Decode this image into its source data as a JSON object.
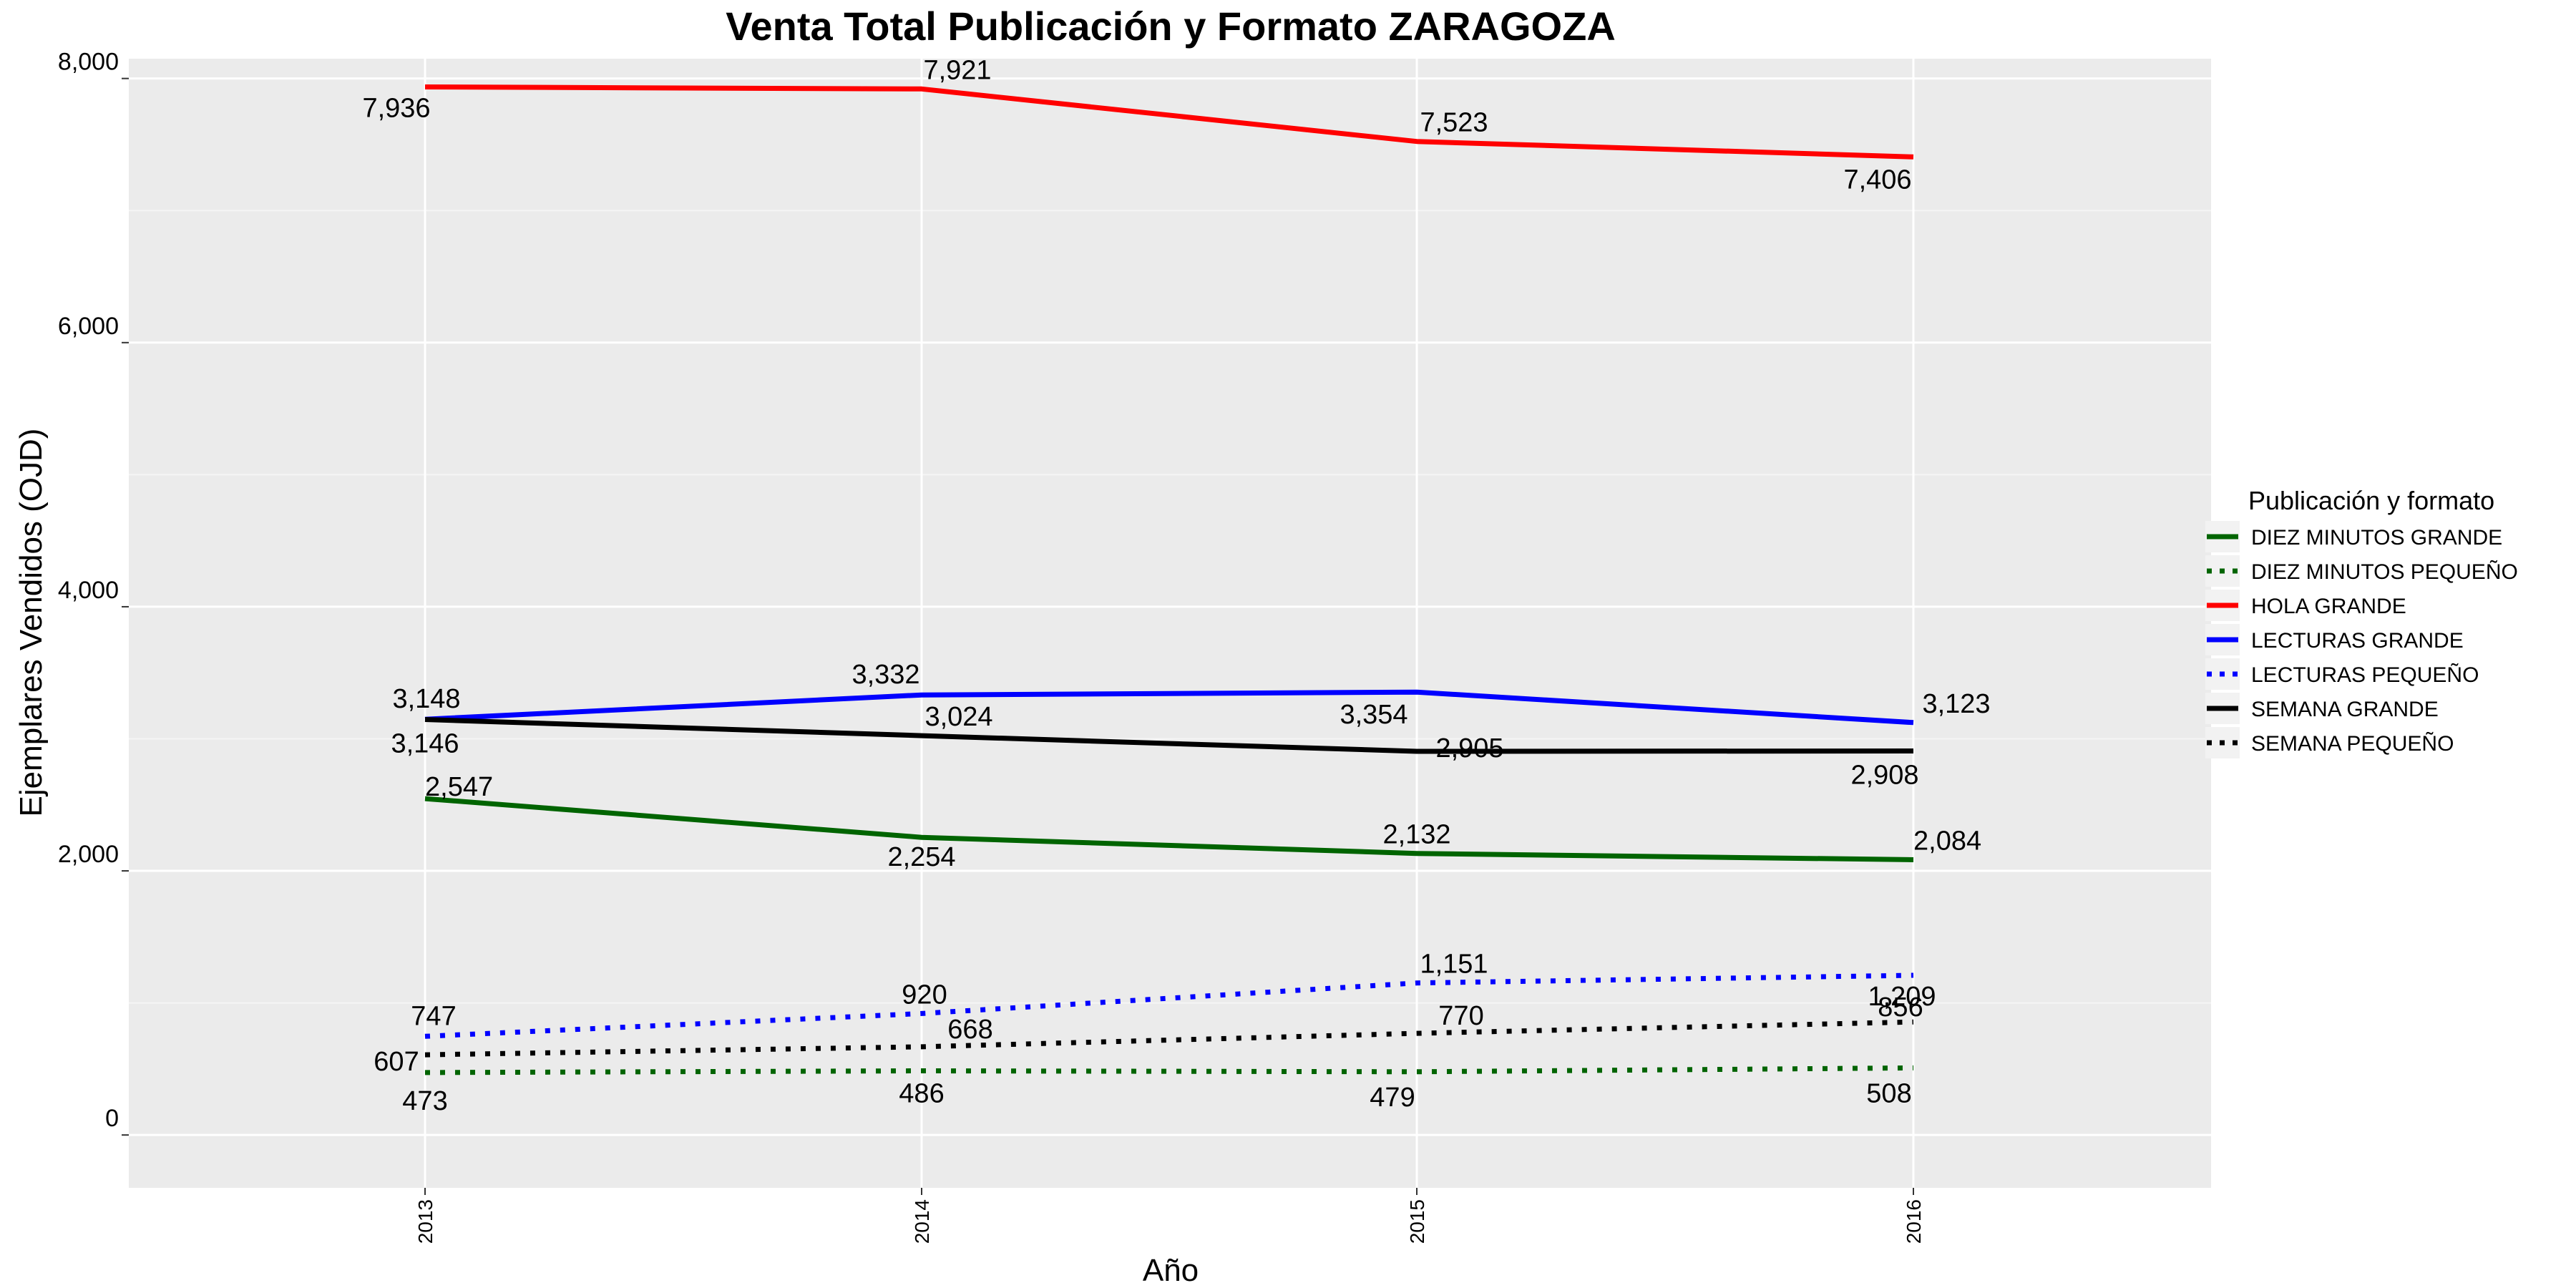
{
  "chart_data": {
    "type": "line",
    "title": "Venta Total Publicación y Formato  ZARAGOZA",
    "xlabel": "Año",
    "ylabel": "Ejemplares Vendidos (OJD)",
    "x": [
      "2013",
      "2014",
      "2015",
      "2016"
    ],
    "ylim": [
      -400,
      8150
    ],
    "yticks": [
      0,
      2000,
      4000,
      6000,
      8000
    ],
    "ytick_labels": [
      "0",
      "2,000",
      "4,000",
      "6,000",
      "8,000"
    ],
    "grid": true,
    "legend_title": "Publicación y formato",
    "legend_position": "right",
    "series": [
      {
        "name": "DIEZ MINUTOS GRANDE",
        "color": "#006400",
        "style": "solid",
        "values": [
          2547,
          2254,
          2132,
          2084
        ],
        "labels": [
          "2,547",
          "2,254",
          "2,132",
          "2,084"
        ]
      },
      {
        "name": "DIEZ MINUTOS PEQUEÑO",
        "color": "#006400",
        "style": "dotted",
        "values": [
          473,
          486,
          479,
          508
        ],
        "labels": [
          "473",
          "486",
          "479",
          "508"
        ]
      },
      {
        "name": "HOLA GRANDE",
        "color": "#ff0000",
        "style": "solid",
        "values": [
          7936,
          7921,
          7523,
          7406
        ],
        "labels": [
          "7,936",
          "7,921",
          "7,523",
          "7,406"
        ]
      },
      {
        "name": "LECTURAS GRANDE",
        "color": "#0000ff",
        "style": "solid",
        "values": [
          3148,
          3332,
          3354,
          3123
        ],
        "labels": [
          "3,148",
          "3,332",
          "3,354",
          "3,123"
        ]
      },
      {
        "name": "LECTURAS PEQUEÑO",
        "color": "#0000ff",
        "style": "dotted",
        "values": [
          747,
          920,
          1151,
          1209
        ],
        "labels": [
          "747",
          "920",
          "1,151",
          "1,209"
        ]
      },
      {
        "name": "SEMANA GRANDE",
        "color": "#000000",
        "style": "solid",
        "values": [
          3146,
          3024,
          2905,
          2908
        ],
        "labels": [
          "3,146",
          "3,024",
          "2,905",
          "2,908"
        ]
      },
      {
        "name": "SEMANA PEQUEÑO",
        "color": "#000000",
        "style": "dotted",
        "values": [
          607,
          668,
          770,
          856
        ],
        "labels": [
          "607",
          "668",
          "770",
          "856"
        ]
      }
    ]
  }
}
